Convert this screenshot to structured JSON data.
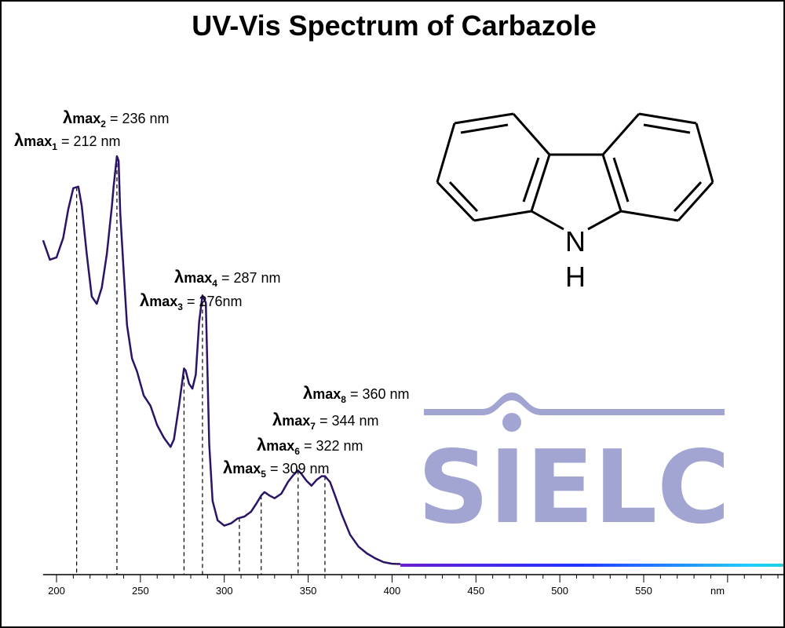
{
  "chart_data": {
    "type": "line",
    "title": "UV-Vis Spectrum of Carbazole",
    "xlabel": "nm",
    "xlim": [
      192,
      925
    ],
    "ylim": [
      0,
      1.0
    ],
    "xticks": [
      200,
      250,
      300,
      350,
      400,
      450,
      500,
      550
    ],
    "grid": false,
    "line_color": "#2b1466",
    "visible_gradient": [
      "#6a1fd0",
      "#2233ff",
      "#22ccff",
      "#22dd55",
      "#eeee22",
      "#ffaa00"
    ],
    "series": [
      {
        "x": [
          192,
          196,
          200,
          204,
          207,
          210,
          213,
          215,
          218,
          221,
          224,
          227,
          230,
          233,
          234,
          236,
          237,
          238,
          240,
          242,
          245,
          248,
          252,
          256,
          260,
          264,
          268,
          270,
          273,
          276,
          277,
          279,
          281,
          283,
          285,
          287,
          289,
          291,
          293,
          296,
          300,
          304,
          308,
          312,
          316,
          319,
          322,
          324,
          327,
          330,
          334,
          338,
          341,
          344,
          346,
          349,
          352,
          355,
          358,
          360,
          363,
          366,
          370,
          375,
          380,
          385,
          390,
          395,
          400,
          405,
          420,
          450,
          500,
          550,
          600,
          650,
          700,
          750,
          800,
          850,
          900,
          925
        ],
        "y": [
          0.854,
          0.803,
          0.809,
          0.86,
          0.936,
          0.991,
          0.995,
          0.945,
          0.818,
          0.706,
          0.687,
          0.73,
          0.818,
          0.943,
          0.995,
          1.075,
          1.063,
          0.925,
          0.774,
          0.631,
          0.543,
          0.509,
          0.446,
          0.419,
          0.368,
          0.335,
          0.311,
          0.331,
          0.419,
          0.517,
          0.511,
          0.477,
          0.464,
          0.501,
          0.64,
          0.709,
          0.69,
          0.319,
          0.169,
          0.118,
          0.104,
          0.11,
          0.123,
          0.128,
          0.141,
          0.161,
          0.183,
          0.192,
          0.183,
          0.176,
          0.188,
          0.219,
          0.236,
          0.249,
          0.24,
          0.222,
          0.209,
          0.224,
          0.234,
          0.234,
          0.219,
          0.183,
          0.134,
          0.08,
          0.049,
          0.031,
          0.018,
          0.008,
          0.004,
          0.003,
          0.0,
          0.0,
          0.0,
          0.0,
          0.0,
          0.0,
          0.0,
          0.0,
          0.0,
          0.0,
          0.0,
          0.0
        ]
      }
    ],
    "peaks": [
      {
        "label": "λmax",
        "sub": "1",
        "text": " = 212 nm",
        "x": 212
      },
      {
        "label": "λmax",
        "sub": "2",
        "text": " = 236 nm",
        "x": 236
      },
      {
        "label": "λmax",
        "sub": "3",
        "text": " = 276nm",
        "x": 276
      },
      {
        "label": "λmax",
        "sub": "4",
        "text": " = 287 nm",
        "x": 287
      },
      {
        "label": "λmax",
        "sub": "5",
        "text": " = 309 nm",
        "x": 309
      },
      {
        "label": "λmax",
        "sub": "6",
        "text": " = 322 nm",
        "x": 322
      },
      {
        "label": "λmax",
        "sub": "7",
        "text": " = 344 nm",
        "x": 344
      },
      {
        "label": "λmax",
        "sub": "8",
        "text": " = 360 nm",
        "x": 360
      }
    ]
  },
  "molecule": {
    "atom_n": "N",
    "atom_h": "H"
  },
  "logo": {
    "text": "SIELC",
    "color": "#a2a4d2"
  }
}
